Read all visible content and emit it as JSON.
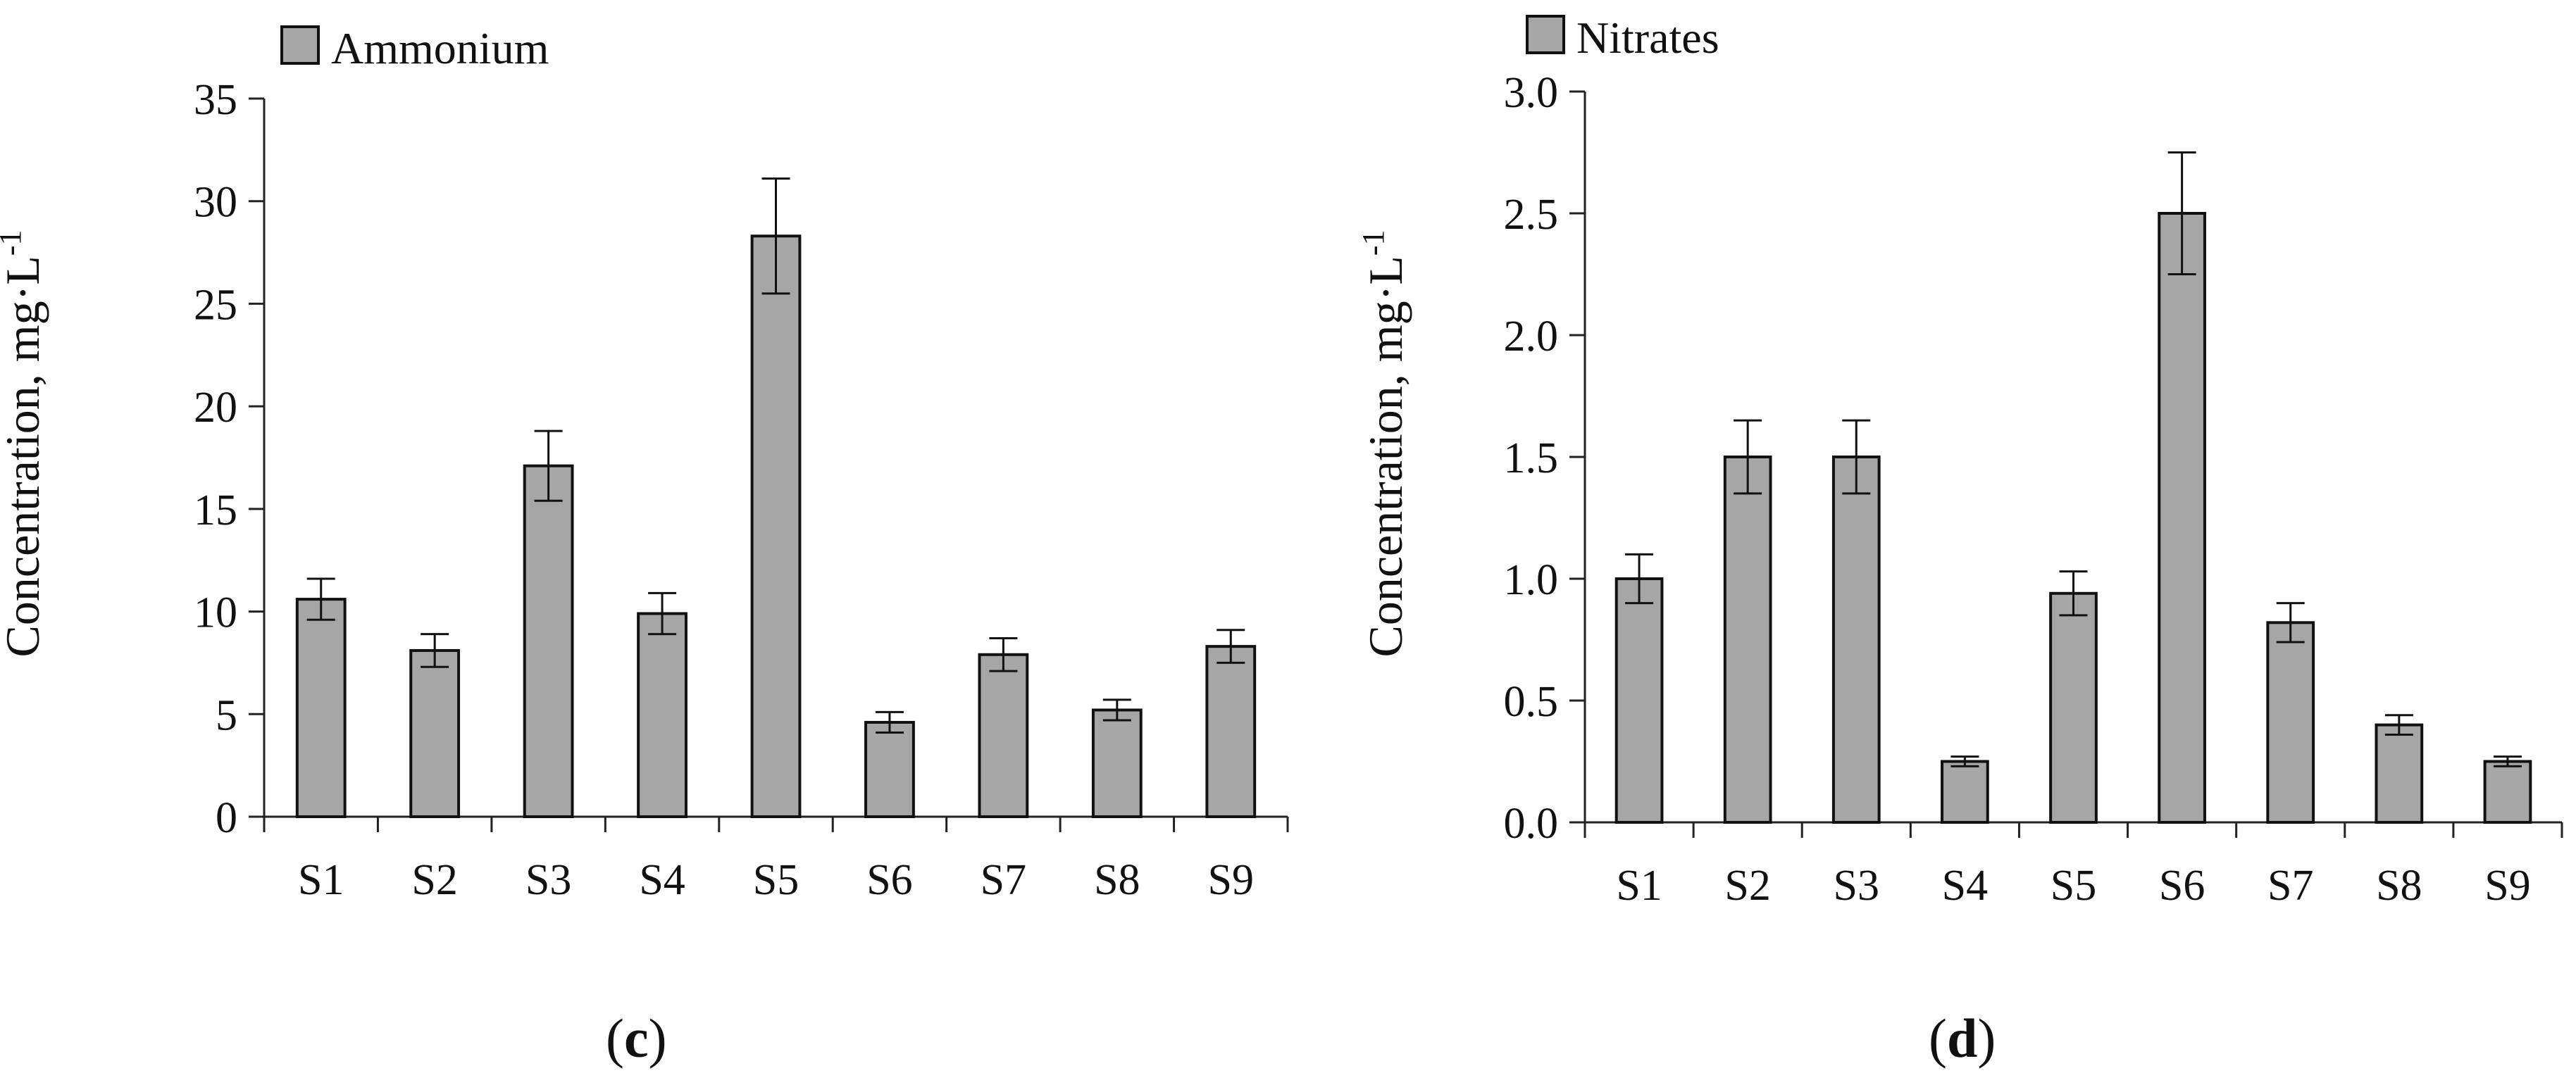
{
  "chart_data": [
    {
      "type": "bar",
      "panel": "c",
      "legend": "Ammonium",
      "ylabel": "Concentration, mg·L",
      "ylabel_sup": "-1",
      "categories": [
        "S1",
        "S2",
        "S3",
        "S4",
        "S5",
        "S6",
        "S7",
        "S8",
        "S9"
      ],
      "values": [
        10.6,
        8.1,
        17.1,
        9.9,
        28.3,
        4.6,
        7.9,
        5.2,
        8.3
      ],
      "errors": [
        1.0,
        0.8,
        1.7,
        1.0,
        2.8,
        0.5,
        0.8,
        0.5,
        0.8
      ],
      "ylim": [
        0,
        35
      ],
      "yticks": [
        0,
        5,
        10,
        15,
        20,
        25,
        30,
        35
      ],
      "ytick_labels": [
        "0",
        "5",
        "10",
        "15",
        "20",
        "25",
        "30",
        "35"
      ],
      "bar_color": "#a6a6a6"
    },
    {
      "type": "bar",
      "panel": "d",
      "legend": "Nitrates",
      "ylabel": "Concentration, mg·L",
      "ylabel_sup": "-1",
      "categories": [
        "S1",
        "S2",
        "S3",
        "S4",
        "S5",
        "S6",
        "S7",
        "S8",
        "S9"
      ],
      "values": [
        1.0,
        1.5,
        1.5,
        0.25,
        0.94,
        2.5,
        0.82,
        0.4,
        0.25
      ],
      "errors": [
        0.1,
        0.15,
        0.15,
        0.02,
        0.09,
        0.25,
        0.08,
        0.04,
        0.02
      ],
      "ylim": [
        0,
        3.0
      ],
      "yticks": [
        0,
        0.5,
        1.0,
        1.5,
        2.0,
        2.5,
        3.0
      ],
      "ytick_labels": [
        "0.0",
        "0.5",
        "1.0",
        "1.5",
        "2.0",
        "2.5",
        "3.0"
      ],
      "bar_color": "#a6a6a6"
    }
  ]
}
